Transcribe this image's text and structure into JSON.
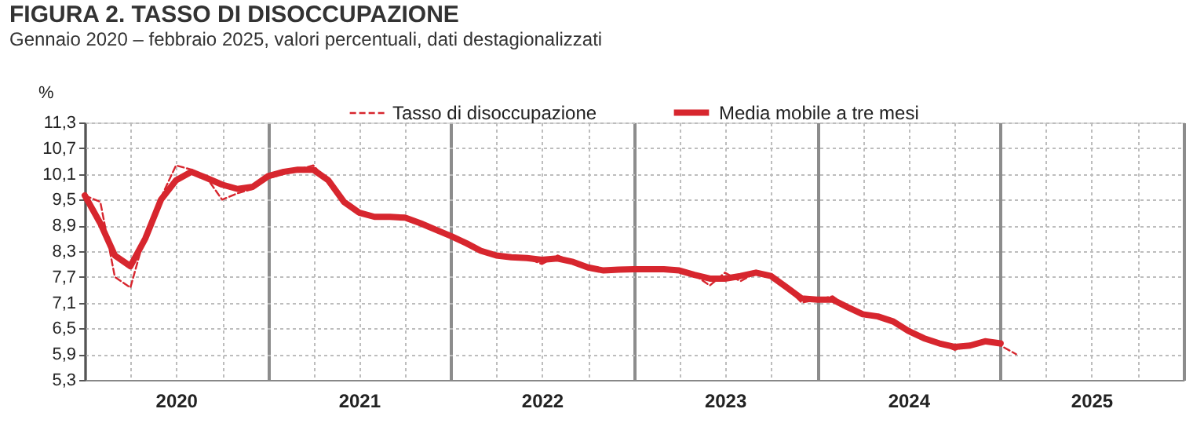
{
  "chart_data": {
    "type": "line",
    "title": "FIGURA 2. TASSO DI DISOCCUPAZIONE",
    "subtitle": "Gennaio 2020 – febbraio 2025, valori percentuali, dati destagionalizzati",
    "ylabel": "%",
    "x": [
      "2020-01",
      "2020-02",
      "2020-03",
      "2020-04",
      "2020-05",
      "2020-06",
      "2020-07",
      "2020-08",
      "2020-09",
      "2020-10",
      "2020-11",
      "2020-12",
      "2021-01",
      "2021-02",
      "2021-03",
      "2021-04",
      "2021-05",
      "2021-06",
      "2021-07",
      "2021-08",
      "2021-09",
      "2021-10",
      "2021-11",
      "2021-12",
      "2022-01",
      "2022-02",
      "2022-03",
      "2022-04",
      "2022-05",
      "2022-06",
      "2022-07",
      "2022-08",
      "2022-09",
      "2022-10",
      "2022-11",
      "2022-12",
      "2023-01",
      "2023-02",
      "2023-03",
      "2023-04",
      "2023-05",
      "2023-06",
      "2023-07",
      "2023-08",
      "2023-09",
      "2023-10",
      "2023-11",
      "2023-12",
      "2024-01",
      "2024-02",
      "2024-03",
      "2024-04",
      "2024-05",
      "2024-06",
      "2024-07",
      "2024-08",
      "2024-09",
      "2024-10",
      "2024-11",
      "2024-12",
      "2025-01",
      "2025-02"
    ],
    "series": [
      {
        "name": "Tasso di disoccupazione",
        "color": "#d7262e",
        "line_style": "dashed",
        "values": [
          9.6,
          9.45,
          7.7,
          7.45,
          8.7,
          9.55,
          10.3,
          10.2,
          10.0,
          9.5,
          9.65,
          9.75,
          10.0,
          10.1,
          10.2,
          10.3,
          9.9,
          9.45,
          9.15,
          9.1,
          9.1,
          9.1,
          8.95,
          8.8,
          8.65,
          8.48,
          8.31,
          8.2,
          8.16,
          8.14,
          8.0,
          8.2,
          8.05,
          7.92,
          7.85,
          7.87,
          7.88,
          7.88,
          7.85,
          7.85,
          7.75,
          7.5,
          7.8,
          7.6,
          7.8,
          7.72,
          7.46,
          7.1,
          7.17,
          7.25,
          7.0,
          6.83,
          6.78,
          6.66,
          6.44,
          6.27,
          6.15,
          6.0,
          6.1,
          6.22,
          6.1,
          5.9
        ]
      },
      {
        "name": "Media mobile a tre mesi",
        "color": "#d7262e",
        "line_style": "solid",
        "values": [
          9.6,
          8.95,
          8.2,
          7.95,
          8.6,
          9.5,
          9.95,
          10.15,
          10.0,
          9.85,
          9.75,
          9.8,
          10.05,
          10.15,
          10.2,
          10.2,
          9.95,
          9.45,
          9.2,
          9.1,
          9.1,
          9.08,
          8.95,
          8.8,
          8.65,
          8.48,
          8.31,
          8.2,
          8.16,
          8.14,
          8.1,
          8.13,
          8.05,
          7.92,
          7.85,
          7.87,
          7.88,
          7.88,
          7.88,
          7.85,
          7.75,
          7.66,
          7.66,
          7.72,
          7.8,
          7.72,
          7.46,
          7.2,
          7.17,
          7.17,
          7.0,
          6.83,
          6.78,
          6.66,
          6.44,
          6.27,
          6.15,
          6.07,
          6.1,
          6.2,
          6.15,
          null
        ]
      }
    ],
    "xlim": [
      "2020-01",
      "2026-01"
    ],
    "xticks": [
      {
        "value": "2020-01",
        "label": null
      },
      {
        "value": "2020-04",
        "label": null
      },
      {
        "value": "2020-07",
        "label": "2020"
      },
      {
        "value": "2020-10",
        "label": null
      },
      {
        "value": "2021-01",
        "label": null
      },
      {
        "value": "2021-04",
        "label": null
      },
      {
        "value": "2021-07",
        "label": "2021"
      },
      {
        "value": "2021-10",
        "label": null
      },
      {
        "value": "2022-01",
        "label": null
      },
      {
        "value": "2022-04",
        "label": null
      },
      {
        "value": "2022-07",
        "label": "2022"
      },
      {
        "value": "2022-10",
        "label": null
      },
      {
        "value": "2023-01",
        "label": null
      },
      {
        "value": "2023-04",
        "label": null
      },
      {
        "value": "2023-07",
        "label": "2023"
      },
      {
        "value": "2023-10",
        "label": null
      },
      {
        "value": "2024-01",
        "label": null
      },
      {
        "value": "2024-04",
        "label": null
      },
      {
        "value": "2024-07",
        "label": "2024"
      },
      {
        "value": "2024-10",
        "label": null
      },
      {
        "value": "2025-01",
        "label": null
      },
      {
        "value": "2025-04",
        "label": null
      },
      {
        "value": "2025-07",
        "label": "2025"
      },
      {
        "value": "2025-10",
        "label": null
      },
      {
        "value": "2026-01",
        "label": null
      }
    ],
    "ylim": [
      5.3,
      11.3
    ],
    "yticks": [
      {
        "value": 5.3,
        "label": "5,3"
      },
      {
        "value": 5.9,
        "label": "5,9"
      },
      {
        "value": 6.5,
        "label": "6,5"
      },
      {
        "value": 7.1,
        "label": "7,1"
      },
      {
        "value": 7.7,
        "label": "7,7"
      },
      {
        "value": 8.3,
        "label": "8,3"
      },
      {
        "value": 8.9,
        "label": "8,9"
      },
      {
        "value": 9.5,
        "label": "9,5"
      },
      {
        "value": 10.1,
        "label": "10,1"
      },
      {
        "value": 10.7,
        "label": "10,7"
      },
      {
        "value": 11.3,
        "label": "11,3"
      }
    ],
    "grid": true,
    "legend": "top",
    "marker": "none"
  }
}
